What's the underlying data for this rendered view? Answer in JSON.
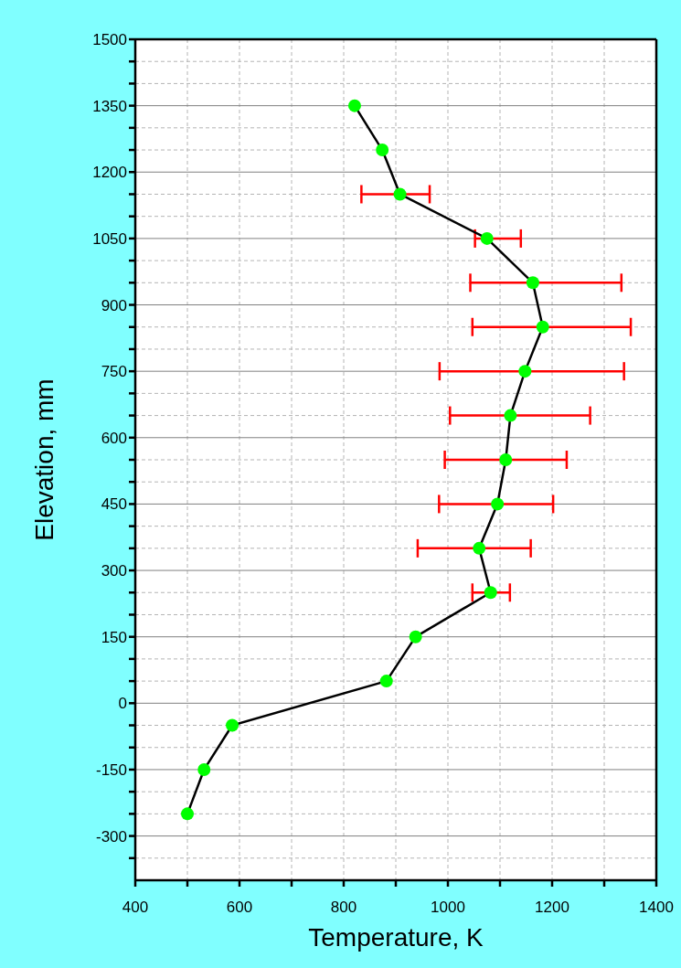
{
  "chart_data": {
    "type": "line",
    "xlabel": "Temperature, K",
    "ylabel": "Elevation, mm",
    "x": [
      821,
      874,
      908,
      1075,
      1163,
      1182,
      1148,
      1120,
      1111,
      1095,
      1060,
      1082,
      938,
      882,
      586,
      532,
      500
    ],
    "series": [
      {
        "color": "#00ff00",
        "values": [
          1350,
          1250,
          1150,
          1050,
          950,
          850,
          750,
          650,
          550,
          450,
          350,
          250,
          150,
          50,
          -50,
          -150,
          -250
        ],
        "xerrors": [
          null,
          null,
          [
            834,
            965
          ],
          [
            1052,
            1140
          ],
          [
            1043,
            1333
          ],
          [
            1047,
            1351
          ],
          [
            984,
            1338
          ],
          [
            1004,
            1273
          ],
          [
            994,
            1228
          ],
          [
            983,
            1202
          ],
          [
            942,
            1159
          ],
          [
            1047,
            1119
          ],
          null,
          null,
          null,
          null,
          null
        ]
      }
    ],
    "marker": "circle",
    "line_style": "solid",
    "grid": true,
    "xlim": [
      400,
      1400
    ],
    "xticks": [
      400,
      {
        "value": 500,
        "label": null
      },
      600,
      {
        "value": 700,
        "label": null
      },
      800,
      {
        "value": 900,
        "label": null
      },
      1000,
      {
        "value": 1100,
        "label": null
      },
      1200,
      {
        "value": 1300,
        "label": null
      },
      1400
    ],
    "ylim": [
      -400,
      1500
    ],
    "yticks": [
      {
        "value": -350,
        "label": null
      },
      -300,
      {
        "value": -250,
        "label": null
      },
      {
        "value": -200,
        "label": null
      },
      -150,
      {
        "value": -100,
        "label": null
      },
      {
        "value": -50,
        "label": null
      },
      0,
      {
        "value": 50,
        "label": null
      },
      {
        "value": 100,
        "label": null
      },
      150,
      {
        "value": 200,
        "label": null
      },
      {
        "value": 250,
        "label": null
      },
      300,
      {
        "value": 350,
        "label": null
      },
      {
        "value": 400,
        "label": null
      },
      450,
      {
        "value": 500,
        "label": null
      },
      {
        "value": 550,
        "label": null
      },
      600,
      {
        "value": 650,
        "label": null
      },
      {
        "value": 700,
        "label": null
      },
      750,
      {
        "value": 800,
        "label": null
      },
      {
        "value": 850,
        "label": null
      },
      900,
      {
        "value": 950,
        "label": null
      },
      {
        "value": 1000,
        "label": null
      },
      1050,
      {
        "value": 1100,
        "label": null
      },
      {
        "value": 1150,
        "label": null
      },
      1200,
      {
        "value": 1250,
        "label": null
      },
      {
        "value": 1300,
        "label": null
      },
      1350,
      {
        "value": 1400,
        "label": null
      },
      {
        "value": 1450,
        "label": null
      },
      1500
    ]
  }
}
